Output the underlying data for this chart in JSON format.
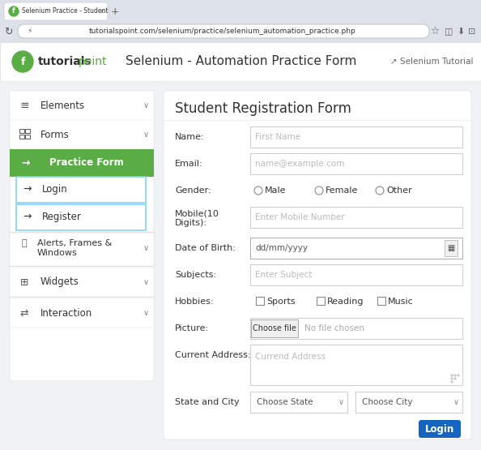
{
  "bg_color": "#dde1ea",
  "tab_bar_color": "#dde1ea",
  "addr_bar_color": "#dde1ea",
  "header_bg": "#ffffff",
  "header_border": "#e0e0e0",
  "content_bg": "#f0f2f5",
  "sidebar_bg": "#ffffff",
  "sidebar_border": "#e2e2e2",
  "form_bg": "#ffffff",
  "green": "#5aac44",
  "green_dark": "#4a9636",
  "blue_border": "#80d4f5",
  "login_btn": "#1565c0",
  "text_dark": "#333333",
  "text_med": "#555555",
  "text_gray": "#888888",
  "text_light": "#bbbbbb",
  "input_border": "#cccccc",
  "tab_text": "Selenium Practice - Student",
  "url_text": "tutorialspoint.com/selenium/practice/selenium_automation_practice.php",
  "page_title": "Selenium - Automation Practice Form",
  "selenium_link": "↗ Selenium Tutorial",
  "form_title": "Student Registration Form",
  "figw": 5.94,
  "figh": 5.55,
  "dpi": 100
}
